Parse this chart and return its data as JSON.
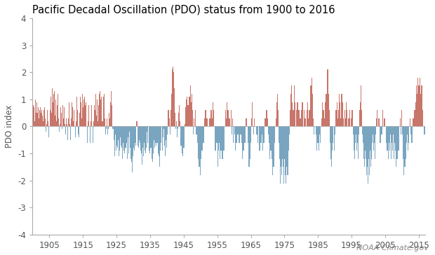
{
  "title": "Pacific Decadal Oscillation (PDO) status from 1900 to 2016",
  "ylabel": "PDO index",
  "watermark": "NOAA Climate.gov",
  "xlim": [
    1900,
    2017
  ],
  "ylim": [
    -4,
    4
  ],
  "xticks": [
    1905,
    1915,
    1925,
    1935,
    1945,
    1955,
    1965,
    1975,
    1985,
    1995,
    2005,
    2015
  ],
  "yticks": [
    -4,
    -3,
    -2,
    -1,
    0,
    1,
    2,
    3,
    4
  ],
  "pos_color": "#c8756a",
  "neg_color": "#7aa5c0",
  "background": "#ffffff",
  "title_fontsize": 10.5,
  "axis_fontsize": 8.5,
  "watermark_fontsize": 8
}
